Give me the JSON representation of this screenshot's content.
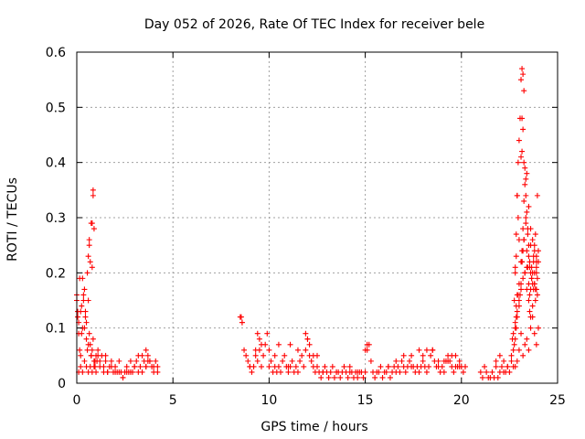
{
  "chart_data": {
    "type": "scatter",
    "title": "Day 052 of 2026, Rate Of TEC Index for receiver bele",
    "xlabel": "GPS time / hours",
    "ylabel": "ROTI / TECUs",
    "xlim": [
      0,
      25
    ],
    "ylim": [
      0,
      0.6
    ],
    "xticks": [
      "0",
      "5",
      "10",
      "15",
      "20",
      "25"
    ],
    "yticks": [
      "0",
      "0.1",
      "0.2",
      "0.3",
      "0.4",
      "0.5",
      "0.6"
    ],
    "xtick_values": [
      0,
      5,
      10,
      15,
      20,
      25
    ],
    "ytick_values": [
      0,
      0.1,
      0.2,
      0.3,
      0.4,
      0.5,
      0.6
    ],
    "grid": true,
    "marker": "plus",
    "color": "#ff0000",
    "series": [
      {
        "x": [
          0.0,
          0.05,
          0.1,
          0.15,
          0.2,
          0.25,
          0.3,
          0.35,
          0.4,
          0.45,
          0.5,
          0.55,
          0.6,
          0.65,
          0.7,
          0.75,
          0.8,
          0.85,
          0.9,
          0.95,
          1.0,
          1.05,
          1.1,
          1.2,
          1.3,
          1.4,
          1.5,
          1.6,
          1.7,
          1.8,
          1.9,
          2.0,
          2.1,
          2.2,
          2.3,
          2.4,
          2.5,
          2.6,
          2.7,
          2.8,
          2.9,
          3.0,
          3.1,
          3.2,
          3.3,
          3.4,
          3.5,
          3.6,
          3.7,
          3.8,
          3.9,
          4.0,
          4.1,
          4.2,
          0.1,
          0.2,
          0.3,
          0.4,
          0.5,
          0.6,
          0.7,
          0.8,
          0.9,
          1.0,
          1.2,
          1.4,
          1.6,
          1.8,
          2.0,
          2.2,
          2.4,
          2.6,
          2.8,
          3.0,
          3.2,
          3.4,
          3.6,
          3.8,
          4.0,
          0.55,
          0.6,
          0.65,
          0.75,
          0.8,
          0.85,
          0.85,
          0.8,
          0.9,
          0.7,
          0.65,
          0.5,
          0.45,
          0.4,
          0.35,
          0.3,
          0.2,
          0.15,
          0.05,
          0.0,
          0.1,
          0.25,
          0.6,
          0.75,
          0.95,
          1.1,
          1.5,
          3.6,
          3.7,
          4.2,
          8.5,
          8.6,
          8.7,
          8.8,
          8.9,
          9.0,
          9.1,
          9.2,
          9.3,
          9.4,
          9.5,
          9.6,
          9.7,
          9.8,
          9.9,
          10.0,
          10.1,
          10.2,
          10.3,
          10.4,
          10.5,
          10.6,
          10.7,
          10.8,
          10.9,
          11.0,
          11.1,
          11.2,
          11.3,
          11.4,
          11.5,
          11.6,
          11.7,
          11.8,
          11.9,
          12.0,
          12.1,
          12.2,
          12.3,
          12.4,
          12.5,
          12.6,
          12.7,
          12.8,
          12.9,
          13.0,
          13.1,
          13.2,
          13.3,
          13.4,
          13.5,
          13.6,
          13.7,
          13.8,
          13.9,
          14.0,
          14.1,
          14.2,
          14.3,
          14.4,
          14.5,
          14.6,
          14.7,
          14.8,
          14.9,
          15.0,
          15.1,
          15.2,
          15.3,
          15.4,
          15.5,
          15.6,
          15.7,
          15.8,
          15.9,
          16.0,
          16.1,
          16.2,
          16.3,
          16.4,
          16.5,
          16.6,
          16.7,
          16.8,
          16.9,
          17.0,
          17.1,
          17.2,
          17.3,
          17.4,
          17.5,
          17.6,
          17.7,
          17.8,
          17.9,
          18.0,
          18.1,
          18.2,
          18.3,
          18.4,
          18.5,
          18.6,
          18.7,
          18.8,
          18.9,
          19.0,
          19.1,
          19.2,
          19.3,
          19.4,
          19.5,
          19.6,
          19.7,
          19.8,
          19.9,
          20.0,
          20.1,
          20.2,
          8.55,
          8.6,
          9.4,
          9.5,
          9.6,
          9.3,
          10.3,
          10.5,
          11.1,
          11.5,
          11.9,
          12.0,
          12.1,
          12.3,
          12.5,
          14.2,
          15.0,
          15.1,
          16.6,
          17.0,
          17.8,
          18.0,
          18.2,
          18.5,
          19.1,
          19.3,
          19.5,
          19.7,
          9.0,
          10.0,
          11.0,
          12.8,
          13.5,
          14.6,
          16.2,
          17.4,
          18.8,
          19.9,
          21.0,
          21.1,
          21.2,
          21.3,
          21.4,
          21.5,
          21.6,
          21.7,
          21.8,
          21.9,
          22.0,
          22.1,
          22.2,
          22.3,
          22.4,
          22.5,
          22.6,
          22.7,
          22.8,
          22.9,
          23.0,
          23.1,
          23.2,
          23.3,
          23.4,
          23.5,
          23.6,
          23.7,
          23.8,
          23.9,
          24.0,
          21.8,
          22.0,
          22.2,
          22.4,
          22.6,
          22.65,
          22.7,
          22.75,
          22.8,
          22.85,
          22.9,
          22.95,
          23.0,
          23.05,
          23.1,
          23.15,
          23.2,
          23.25,
          23.3,
          23.35,
          23.4,
          23.45,
          23.5,
          23.55,
          23.6,
          23.65,
          23.7,
          23.75,
          23.8,
          23.85,
          23.9,
          23.95,
          22.7,
          22.75,
          22.8,
          22.85,
          22.9,
          23.0,
          23.1,
          23.15,
          23.2,
          23.25,
          23.3,
          23.35,
          23.4,
          23.45,
          23.5,
          23.55,
          23.6,
          23.65,
          23.7,
          23.75,
          23.8,
          23.85,
          23.9,
          23.95,
          24.0,
          22.8,
          22.9,
          23.0,
          23.1,
          23.2,
          23.3,
          23.4,
          23.5,
          23.6,
          23.7,
          23.8,
          23.9,
          22.85,
          22.95,
          23.15,
          23.25,
          23.35,
          23.45,
          23.55,
          23.65,
          23.75,
          23.85,
          23.95,
          22.8,
          22.85,
          22.9,
          23.0,
          23.05,
          23.1,
          23.15,
          23.2,
          23.25,
          23.3,
          23.4,
          23.5,
          23.55,
          23.6,
          23.7,
          23.8,
          23.9,
          24.0,
          23.1,
          23.15,
          23.2,
          23.15,
          23.25,
          22.9,
          22.95,
          23.0,
          22.85,
          22.8,
          23.35,
          23.4,
          23.5,
          23.6,
          23.8,
          23.9
        ],
        "y": [
          0.16,
          0.12,
          0.09,
          0.06,
          0.05,
          0.14,
          0.19,
          0.16,
          0.1,
          0.13,
          0.08,
          0.06,
          0.15,
          0.09,
          0.07,
          0.05,
          0.06,
          0.08,
          0.04,
          0.03,
          0.05,
          0.04,
          0.06,
          0.04,
          0.05,
          0.03,
          0.04,
          0.02,
          0.03,
          0.04,
          0.02,
          0.03,
          0.02,
          0.04,
          0.02,
          0.01,
          0.02,
          0.03,
          0.02,
          0.04,
          0.02,
          0.03,
          0.04,
          0.05,
          0.03,
          0.05,
          0.04,
          0.06,
          0.05,
          0.04,
          0.03,
          0.03,
          0.04,
          0.03,
          0.02,
          0.03,
          0.02,
          0.04,
          0.03,
          0.02,
          0.03,
          0.02,
          0.03,
          0.02,
          0.03,
          0.02,
          0.02,
          0.03,
          0.02,
          0.02,
          0.01,
          0.02,
          0.02,
          0.03,
          0.02,
          0.02,
          0.03,
          0.04,
          0.02,
          0.2,
          0.23,
          0.25,
          0.29,
          0.29,
          0.35,
          0.34,
          0.21,
          0.28,
          0.22,
          0.26,
          0.11,
          0.12,
          0.17,
          0.15,
          0.1,
          0.13,
          0.19,
          0.13,
          0.15,
          0.11,
          0.09,
          0.07,
          0.05,
          0.04,
          0.05,
          0.05,
          0.03,
          0.04,
          0.02,
          0.12,
          0.11,
          0.06,
          0.05,
          0.04,
          0.03,
          0.02,
          0.03,
          0.05,
          0.04,
          0.06,
          0.03,
          0.05,
          0.07,
          0.09,
          0.06,
          0.04,
          0.02,
          0.03,
          0.02,
          0.03,
          0.02,
          0.04,
          0.05,
          0.03,
          0.02,
          0.03,
          0.04,
          0.02,
          0.03,
          0.02,
          0.04,
          0.05,
          0.03,
          0.06,
          0.08,
          0.05,
          0.04,
          0.03,
          0.02,
          0.03,
          0.02,
          0.01,
          0.02,
          0.03,
          0.02,
          0.01,
          0.02,
          0.03,
          0.01,
          0.02,
          0.02,
          0.01,
          0.02,
          0.03,
          0.02,
          0.01,
          0.02,
          0.02,
          0.01,
          0.02,
          0.01,
          0.02,
          0.02,
          0.01,
          0.02,
          0.06,
          0.07,
          0.04,
          0.02,
          0.01,
          0.02,
          0.02,
          0.03,
          0.01,
          0.02,
          0.02,
          0.03,
          0.01,
          0.02,
          0.03,
          0.02,
          0.03,
          0.02,
          0.04,
          0.03,
          0.02,
          0.03,
          0.04,
          0.05,
          0.03,
          0.02,
          0.03,
          0.02,
          0.03,
          0.04,
          0.03,
          0.02,
          0.03,
          0.05,
          0.06,
          0.04,
          0.03,
          0.03,
          0.02,
          0.03,
          0.02,
          0.04,
          0.05,
          0.04,
          0.03,
          0.02,
          0.03,
          0.03,
          0.04,
          0.03,
          0.02,
          0.03,
          0.12,
          0.11,
          0.09,
          0.08,
          0.07,
          0.06,
          0.05,
          0.07,
          0.07,
          0.06,
          0.09,
          0.08,
          0.07,
          0.05,
          0.05,
          0.03,
          0.06,
          0.07,
          0.04,
          0.05,
          0.06,
          0.05,
          0.06,
          0.06,
          0.04,
          0.04,
          0.05,
          0.05,
          0.03,
          0.03,
          0.03,
          0.02,
          0.02,
          0.02,
          0.03,
          0.03,
          0.04,
          0.03,
          0.02,
          0.01,
          0.03,
          0.02,
          0.01,
          0.01,
          0.02,
          0.01,
          0.03,
          0.01,
          0.02,
          0.03,
          0.02,
          0.02,
          0.03,
          0.02,
          0.04,
          0.03,
          0.03,
          0.04,
          0.06,
          0.09,
          0.05,
          0.07,
          0.08,
          0.06,
          0.1,
          0.12,
          0.09,
          0.07,
          0.1,
          0.04,
          0.05,
          0.04,
          0.03,
          0.05,
          0.08,
          0.09,
          0.15,
          0.21,
          0.27,
          0.34,
          0.4,
          0.44,
          0.48,
          0.55,
          0.57,
          0.56,
          0.53,
          0.39,
          0.3,
          0.24,
          0.21,
          0.18,
          0.16,
          0.17,
          0.21,
          0.26,
          0.23,
          0.2,
          0.17,
          0.21,
          0.34,
          0.06,
          0.07,
          0.1,
          0.12,
          0.16,
          0.18,
          0.22,
          0.24,
          0.28,
          0.33,
          0.36,
          0.34,
          0.31,
          0.28,
          0.25,
          0.22,
          0.2,
          0.19,
          0.18,
          0.22,
          0.24,
          0.27,
          0.23,
          0.19,
          0.24,
          0.11,
          0.13,
          0.15,
          0.17,
          0.19,
          0.2,
          0.21,
          0.23,
          0.25,
          0.2,
          0.18,
          0.17,
          0.14,
          0.16,
          0.22,
          0.26,
          0.29,
          0.27,
          0.21,
          0.19,
          0.17,
          0.15,
          0.16,
          0.08,
          0.1,
          0.12,
          0.14,
          0.16,
          0.18,
          0.22,
          0.24,
          0.26,
          0.2,
          0.17,
          0.15,
          0.13,
          0.12,
          0.14,
          0.18,
          0.2,
          0.22,
          0.41,
          0.48,
          0.46,
          0.42,
          0.4,
          0.34,
          0.3,
          0.26,
          0.23,
          0.2,
          0.37,
          0.38,
          0.32,
          0.28,
          0.25,
          0.22
        ]
      }
    ]
  }
}
